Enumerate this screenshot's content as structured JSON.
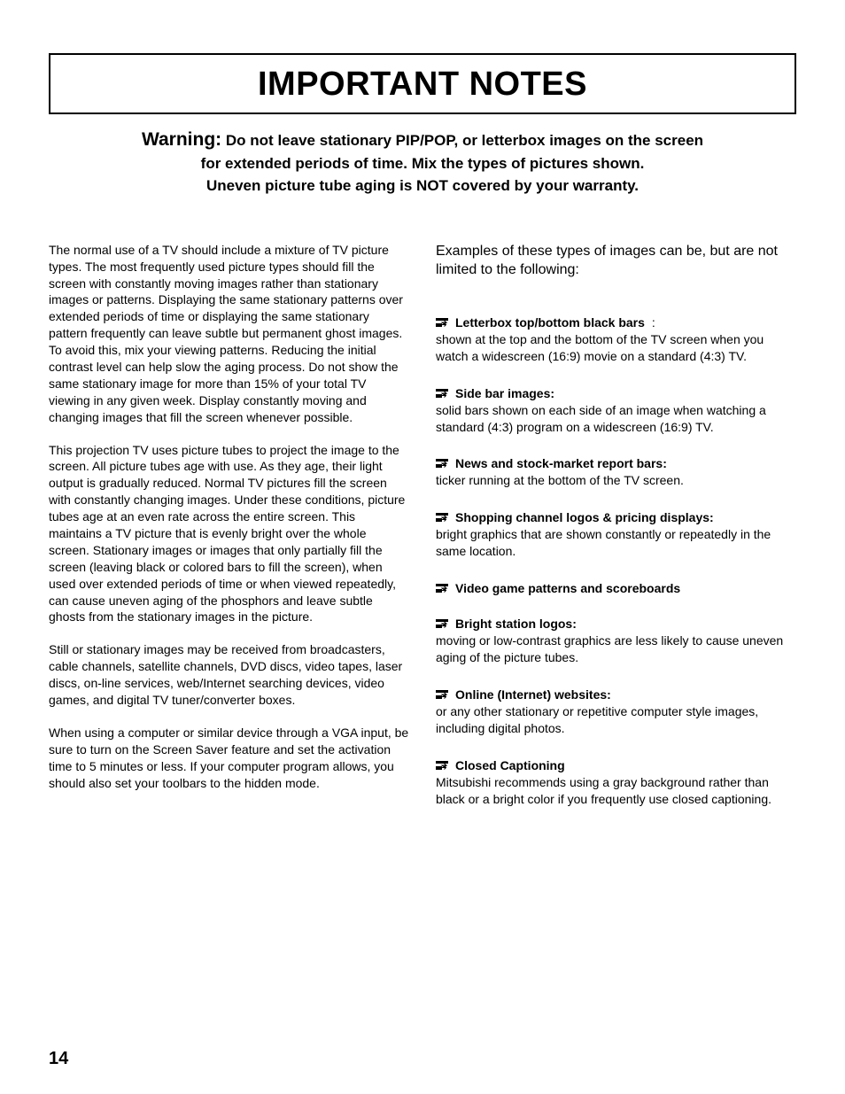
{
  "title": "IMPORTANT NOTES",
  "warning": {
    "label": "Warning:",
    "line1": "Do not leave stationary PIP/POP, or letterbox images on the screen",
    "line2": "for extended periods of time.  Mix the types of pictures shown.",
    "line3": "Uneven picture tube aging is NOT covered by your warranty."
  },
  "left": {
    "p1": "The normal use of a TV should include a mixture of TV picture types.  The most frequently used picture types should fill the screen with constantly moving images rather than stationary images or patterns.  Displaying the same stationary patterns over extended periods of time or displaying the same stationary pattern frequently can leave subtle but permanent ghost images.  To avoid this, mix your viewing patterns. Reducing the initial contrast level can help slow the aging process.  Do not show the same stationary image for more than 15% of your total TV viewing in any given week.  Display constantly moving and changing images that fill the screen whenever possible.",
    "p2": "This projection TV uses picture tubes to project the image to the screen.  All picture tubes age with use.  As they age, their light output is gradually reduced.  Normal TV pictures fill the screen with constantly changing images.  Under these conditions,  picture tubes age at an even rate across the entire screen.  This maintains a TV picture that is evenly bright over the whole screen.  Stationary images or images that only partially fill the screen (leaving black or colored bars to fill the screen), when used over extended periods of time or when viewed repeatedly, can cause uneven aging of the phosphors and leave subtle ghosts from the stationary images in the picture.",
    "p3": "Still or stationary images may be received from broadcasters, cable channels, satellite channels, DVD discs, video tapes, laser discs, on-line services, web/Internet searching devices, video games, and digital TV tuner/converter boxes.",
    "p4": "When using a computer or similar device through a VGA input, be sure to turn on the Screen Saver feature and set the activation time to 5 minutes or less.  If your computer program allows, you should also set your toolbars to the hidden mode."
  },
  "right": {
    "intro": "Examples of these types of images can be, but are not limited to the following:",
    "items": [
      {
        "title": "Letterbox top/bottom black bars",
        "suffix": ":",
        "desc": "shown at the top and the bottom of the TV screen when you watch a widescreen (16:9) movie on a standard (4:3) TV."
      },
      {
        "title": "Side bar images:",
        "suffix": "",
        "desc": "solid bars shown on each side of an image when watching a standard (4:3) program on a widescreen (16:9) TV."
      },
      {
        "title": "News and stock-market report bars:",
        "suffix": "",
        "desc": "ticker running at the bottom of the TV screen."
      },
      {
        "title": "Shopping channel logos & pricing displays:",
        "suffix": "",
        "desc": "bright graphics that are shown constantly or repeatedly in the same location."
      },
      {
        "title": "Video game patterns and scoreboards",
        "suffix": "",
        "desc": ""
      },
      {
        "title": "Bright station logos:",
        "suffix": "",
        "desc": "moving or low-contrast graphics are less likely to cause uneven aging of the picture tubes."
      },
      {
        "title": "Online (Internet) websites:",
        "suffix": "",
        "desc": "or any other stationary or repetitive computer style images, including digital photos."
      },
      {
        "title": "Closed Captioning",
        "suffix": "",
        "desc": "Mitsubishi recommends using a gray background rather than black or a bright color if you frequently use closed captioning."
      }
    ]
  },
  "pageNumber": "14",
  "colors": {
    "text": "#000000",
    "bg": "#ffffff",
    "border": "#000000"
  },
  "typography": {
    "title_fontsize": 38,
    "warning_label_fontsize": 21,
    "warning_text_fontsize": 17,
    "body_fontsize": 14,
    "intro_right_fontsize": 16,
    "page_num_fontsize": 20
  }
}
